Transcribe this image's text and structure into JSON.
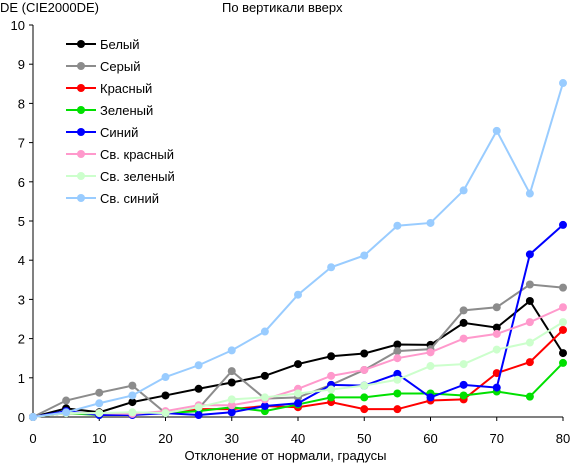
{
  "chart_data": {
    "type": "line",
    "title": "По вертикали вверх",
    "ylabel": "DE (CIE2000DE)",
    "xlabel": "Отклонение от нормали, градусы",
    "x": [
      0,
      5,
      10,
      15,
      20,
      25,
      30,
      35,
      40,
      45,
      50,
      55,
      60,
      65,
      70,
      75,
      80
    ],
    "xlim": [
      0,
      80
    ],
    "ylim": [
      0,
      10
    ],
    "xticks": [
      0,
      10,
      20,
      30,
      40,
      50,
      60,
      70,
      80
    ],
    "yticks": [
      0,
      1,
      2,
      3,
      4,
      5,
      6,
      7,
      8,
      9,
      10
    ],
    "grid": false,
    "legend_position": "top-left",
    "series": [
      {
        "name": "Белый",
        "color": "#000000",
        "values": [
          0,
          0.22,
          0.12,
          0.38,
          0.55,
          0.72,
          0.88,
          1.05,
          1.35,
          1.55,
          1.62,
          1.85,
          1.84,
          2.4,
          2.28,
          2.96,
          1.63
        ]
      },
      {
        "name": "Серый",
        "color": "#8c8c8c",
        "values": [
          0,
          0.42,
          0.62,
          0.8,
          0.1,
          0.22,
          1.17,
          0.47,
          0.5,
          0.82,
          1.2,
          1.68,
          1.73,
          2.72,
          2.8,
          3.38,
          3.3
        ]
      },
      {
        "name": "Красный",
        "color": "#ff0000",
        "values": [
          0,
          0.1,
          0.1,
          0.08,
          0.1,
          0.2,
          0.2,
          0.28,
          0.25,
          0.38,
          0.2,
          0.2,
          0.42,
          0.45,
          1.12,
          1.4,
          2.22
        ]
      },
      {
        "name": "Зеленый",
        "color": "#00e000",
        "values": [
          0,
          0.1,
          0.05,
          0.1,
          0.1,
          0.15,
          0.25,
          0.15,
          0.32,
          0.5,
          0.5,
          0.6,
          0.6,
          0.55,
          0.65,
          0.52,
          1.38
        ]
      },
      {
        "name": "Синий",
        "color": "#0000ff",
        "values": [
          0,
          0.15,
          0.05,
          0.05,
          0.1,
          0.05,
          0.12,
          0.28,
          0.35,
          0.82,
          0.8,
          1.1,
          0.5,
          0.82,
          0.75,
          4.15,
          4.9
        ]
      },
      {
        "name": "Св. красный",
        "color": "#ff99cc",
        "values": [
          0,
          0.1,
          0.1,
          0.08,
          0.15,
          0.3,
          0.3,
          0.45,
          0.72,
          1.05,
          1.2,
          1.5,
          1.65,
          2.0,
          2.12,
          2.42,
          2.8
        ]
      },
      {
        "name": "Св. зеленый",
        "color": "#ccffcc",
        "values": [
          0,
          0.1,
          0.1,
          0.12,
          0.1,
          0.25,
          0.45,
          0.5,
          0.6,
          0.7,
          0.8,
          0.95,
          1.3,
          1.35,
          1.72,
          1.9,
          2.42
        ]
      },
      {
        "name": "Св. синий",
        "color": "#99ccff",
        "values": [
          0,
          0.12,
          0.35,
          0.55,
          1.02,
          1.32,
          1.7,
          2.18,
          3.12,
          3.82,
          4.12,
          4.88,
          4.95,
          5.78,
          7.3,
          5.7,
          8.52
        ]
      }
    ]
  }
}
